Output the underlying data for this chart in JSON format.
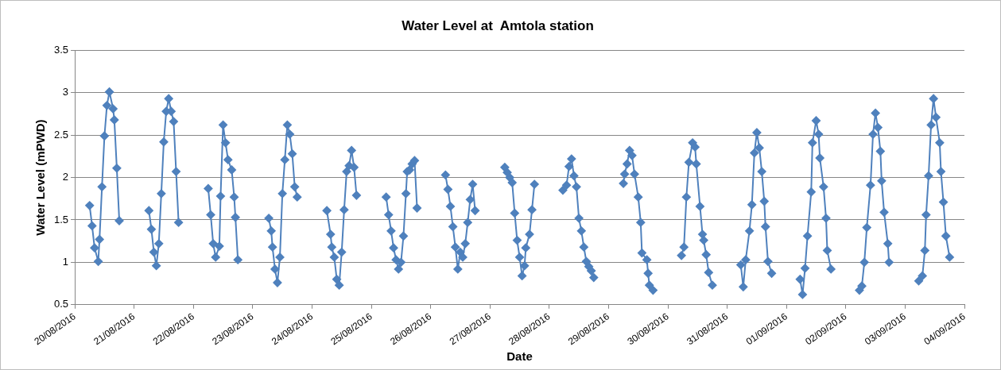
{
  "chart_data": {
    "type": "line",
    "title": "Water Level at  Amtola station",
    "xlabel": "Date",
    "ylabel": "Water Level (mPWD)",
    "x": [
      "2016-08-20T06:00",
      "2016-08-20T07:00",
      "2016-08-20T08:00",
      "2016-08-20T09:30",
      "2016-08-20T10:00",
      "2016-08-20T11:00",
      "2016-08-20T12:00",
      "2016-08-20T13:00",
      "2016-08-20T14:00",
      "2016-08-20T15:30",
      "2016-08-20T16:00",
      "2016-08-20T17:00",
      "2016-08-20T18:00",
      "2016-08-20T23:00",
      "2016-08-21T06:00",
      "2016-08-21T07:00",
      "2016-08-21T08:00",
      "2016-08-21T09:00",
      "2016-08-21T10:00",
      "2016-08-21T11:00",
      "2016-08-21T12:00",
      "2016-08-21T13:00",
      "2016-08-21T14:00",
      "2016-08-21T15:00",
      "2016-08-21T16:00",
      "2016-08-21T17:00",
      "2016-08-21T18:00",
      "2016-08-21T23:00",
      "2016-08-22T06:00",
      "2016-08-22T07:00",
      "2016-08-22T08:00",
      "2016-08-22T09:00",
      "2016-08-22T10:30",
      "2016-08-22T11:00",
      "2016-08-22T12:00",
      "2016-08-22T13:00",
      "2016-08-22T14:00",
      "2016-08-22T15:30",
      "2016-08-22T16:30",
      "2016-08-22T17:00",
      "2016-08-22T18:00",
      "2016-08-22T23:00",
      "2016-08-23T06:30",
      "2016-08-23T07:30",
      "2016-08-23T08:00",
      "2016-08-23T09:00",
      "2016-08-23T10:00",
      "2016-08-23T11:00",
      "2016-08-23T12:00",
      "2016-08-23T13:00",
      "2016-08-23T14:00",
      "2016-08-23T15:00",
      "2016-08-23T16:00",
      "2016-08-23T17:00",
      "2016-08-23T18:00",
      "2016-08-23T23:00",
      "2016-08-24T06:00",
      "2016-08-24T07:30",
      "2016-08-24T08:00",
      "2016-08-24T09:00",
      "2016-08-24T10:00",
      "2016-08-24T11:00",
      "2016-08-24T12:00",
      "2016-08-24T13:00",
      "2016-08-24T14:00",
      "2016-08-24T15:00",
      "2016-08-24T16:00",
      "2016-08-24T17:00",
      "2016-08-24T18:00",
      "2016-08-24T23:00",
      "2016-08-25T06:00",
      "2016-08-25T07:00",
      "2016-08-25T08:00",
      "2016-08-25T09:00",
      "2016-08-25T10:00",
      "2016-08-25T11:00",
      "2016-08-25T12:00",
      "2016-08-25T13:00",
      "2016-08-25T14:00",
      "2016-08-25T14:30",
      "2016-08-25T15:30",
      "2016-08-25T16:30",
      "2016-08-25T17:30",
      "2016-08-25T18:30",
      "2016-08-25T23:00",
      "2016-08-26T06:00",
      "2016-08-26T07:00",
      "2016-08-26T08:00",
      "2016-08-26T09:00",
      "2016-08-26T10:00",
      "2016-08-26T11:00",
      "2016-08-26T12:00",
      "2016-08-26T13:00",
      "2016-08-26T14:00",
      "2016-08-26T15:00",
      "2016-08-26T16:00",
      "2016-08-26T17:00",
      "2016-08-26T18:00",
      "2016-08-26T23:00",
      "2016-08-27T06:00",
      "2016-08-27T07:00",
      "2016-08-27T08:00",
      "2016-08-27T09:00",
      "2016-08-27T10:00",
      "2016-08-27T11:00",
      "2016-08-27T12:00",
      "2016-08-27T13:00",
      "2016-08-27T14:00",
      "2016-08-27T14:30",
      "2016-08-27T16:00",
      "2016-08-27T17:00",
      "2016-08-27T18:00",
      "2016-08-27T23:00",
      "2016-08-28T05:30",
      "2016-08-28T07:00",
      "2016-08-28T08:00",
      "2016-08-28T09:00",
      "2016-08-28T10:00",
      "2016-08-28T11:00",
      "2016-08-28T12:00",
      "2016-08-28T13:00",
      "2016-08-28T14:00",
      "2016-08-28T15:00",
      "2016-08-28T16:00",
      "2016-08-28T17:00",
      "2016-08-28T18:00",
      "2016-08-28T23:00",
      "2016-08-29T06:00",
      "2016-08-29T06:30",
      "2016-08-29T07:30",
      "2016-08-29T08:30",
      "2016-08-29T09:30",
      "2016-08-29T10:30",
      "2016-08-29T12:00",
      "2016-08-29T13:00",
      "2016-08-29T13:30",
      "2016-08-29T15:30",
      "2016-08-29T16:00",
      "2016-08-29T16:30",
      "2016-08-29T18:00",
      "2016-08-29T23:00",
      "2016-08-30T05:30",
      "2016-08-30T06:30",
      "2016-08-30T07:30",
      "2016-08-30T08:30",
      "2016-08-30T10:00",
      "2016-08-30T11:00",
      "2016-08-30T11:30",
      "2016-08-30T13:00",
      "2016-08-30T14:00",
      "2016-08-30T14:30",
      "2016-08-30T15:30",
      "2016-08-30T16:30",
      "2016-08-30T18:00",
      "2016-08-30T23:00",
      "2016-08-31T05:30",
      "2016-08-31T06:30",
      "2016-08-31T07:30",
      "2016-08-31T09:00",
      "2016-08-31T10:00",
      "2016-08-31T11:00",
      "2016-08-31T12:00",
      "2016-08-31T13:00",
      "2016-08-31T14:00",
      "2016-08-31T15:00",
      "2016-08-31T15:30",
      "2016-08-31T16:30",
      "2016-08-31T18:00",
      "2016-08-31T23:00",
      "2016-09-01T05:30",
      "2016-09-01T06:30",
      "2016-09-01T07:30",
      "2016-09-01T08:30",
      "2016-09-01T10:00",
      "2016-09-01T10:30",
      "2016-09-01T12:00",
      "2016-09-01T13:00",
      "2016-09-01T13:30",
      "2016-09-01T15:00",
      "2016-09-01T16:00",
      "2016-09-01T16:30",
      "2016-09-01T18:00",
      "2016-09-01T23:00",
      "2016-09-02T05:30",
      "2016-09-02T06:30",
      "2016-09-02T07:30",
      "2016-09-02T08:30",
      "2016-09-02T10:00",
      "2016-09-02T11:00",
      "2016-09-02T12:00",
      "2016-09-02T13:00",
      "2016-09-02T14:00",
      "2016-09-02T14:30",
      "2016-09-02T15:30",
      "2016-09-02T17:00",
      "2016-09-02T17:30",
      "2016-09-02T23:00",
      "2016-09-03T05:30",
      "2016-09-03T07:00",
      "2016-09-03T08:00",
      "2016-09-03T08:30",
      "2016-09-03T09:30",
      "2016-09-03T10:30",
      "2016-09-03T11:30",
      "2016-09-03T12:30",
      "2016-09-03T14:00",
      "2016-09-03T14:30",
      "2016-09-03T15:30",
      "2016-09-03T16:30",
      "2016-09-03T18:00"
    ],
    "series": [
      {
        "color": "#4f81bd",
        "values": [
          1.67,
          1.43,
          1.17,
          1.01,
          1.27,
          1.89,
          2.49,
          2.85,
          3.01,
          2.81,
          2.68,
          2.11,
          1.49,
          null,
          1.61,
          1.39,
          1.12,
          0.96,
          1.22,
          1.81,
          2.42,
          2.78,
          2.93,
          2.78,
          2.66,
          2.07,
          1.47,
          null,
          1.87,
          1.56,
          1.22,
          1.06,
          1.19,
          1.78,
          2.62,
          2.41,
          2.21,
          2.09,
          1.77,
          1.53,
          1.03,
          null,
          1.52,
          1.37,
          1.18,
          0.92,
          0.76,
          1.06,
          1.81,
          2.21,
          2.62,
          2.51,
          2.28,
          1.89,
          1.77,
          null,
          1.61,
          1.33,
          1.18,
          1.06,
          0.8,
          0.73,
          1.12,
          1.62,
          2.07,
          2.14,
          2.32,
          2.12,
          1.79,
          null,
          1.77,
          1.56,
          1.37,
          1.17,
          1.03,
          0.92,
          1.0,
          1.31,
          1.81,
          2.07,
          2.09,
          2.16,
          2.2,
          1.64,
          null,
          2.03,
          1.86,
          1.66,
          1.42,
          1.18,
          0.92,
          1.12,
          1.06,
          1.22,
          1.47,
          1.74,
          1.92,
          1.61,
          null,
          2.12,
          2.06,
          2.0,
          1.94,
          1.58,
          1.26,
          1.06,
          0.84,
          0.96,
          1.17,
          1.33,
          1.62,
          1.92,
          null,
          1.85,
          1.91,
          2.13,
          2.22,
          2.02,
          1.89,
          1.52,
          1.37,
          1.18,
          1.01,
          0.95,
          0.9,
          0.82,
          null,
          1.93,
          2.04,
          2.16,
          2.32,
          2.26,
          2.04,
          1.77,
          1.47,
          1.11,
          1.03,
          0.87,
          0.73,
          0.67,
          null,
          1.08,
          1.18,
          1.77,
          2.18,
          2.41,
          2.36,
          2.16,
          1.66,
          1.33,
          1.26,
          1.09,
          0.88,
          0.73,
          null,
          0.97,
          0.71,
          1.03,
          1.37,
          1.68,
          2.29,
          2.53,
          2.35,
          2.07,
          1.72,
          1.42,
          1.01,
          0.87,
          null,
          0.8,
          0.62,
          0.93,
          1.31,
          1.83,
          2.41,
          2.67,
          2.51,
          2.23,
          1.89,
          1.52,
          1.14,
          0.92,
          null,
          0.67,
          0.72,
          1.0,
          1.41,
          1.91,
          2.51,
          2.76,
          2.59,
          2.31,
          1.96,
          1.59,
          1.22,
          1.0,
          null,
          0.78,
          0.84,
          1.14,
          1.56,
          2.02,
          2.62,
          2.93,
          2.71,
          2.41,
          2.07,
          1.71,
          1.31,
          1.06
        ]
      }
    ],
    "xlim": [
      "2016-08-20",
      "2016-09-04"
    ],
    "xticks": [
      {
        "value": "2016-08-20",
        "label": "20/08/2016"
      },
      {
        "value": "2016-08-21",
        "label": "21/08/2016"
      },
      {
        "value": "2016-08-22",
        "label": "22/08/2016"
      },
      {
        "value": "2016-08-23",
        "label": "23/08/2016"
      },
      {
        "value": "2016-08-24",
        "label": "24/08/2016"
      },
      {
        "value": "2016-08-25",
        "label": "25/08/2016"
      },
      {
        "value": "2016-08-26",
        "label": "26/08/2016"
      },
      {
        "value": "2016-08-27",
        "label": "27/08/2016"
      },
      {
        "value": "2016-08-28",
        "label": "28/08/2016"
      },
      {
        "value": "2016-08-29",
        "label": "29/08/2016"
      },
      {
        "value": "2016-08-30",
        "label": "30/08/2016"
      },
      {
        "value": "2016-08-31",
        "label": "31/08/2016"
      },
      {
        "value": "2016-09-01",
        "label": "01/09/2016"
      },
      {
        "value": "2016-09-02",
        "label": "02/09/2016"
      },
      {
        "value": "2016-09-03",
        "label": "03/09/2016"
      },
      {
        "value": "2016-09-04",
        "label": "04/09/2016"
      }
    ],
    "ylim": [
      0.5,
      3.5
    ],
    "yticks": [
      0.5,
      1,
      1.5,
      2,
      2.5,
      3,
      3.5
    ],
    "grid": "y",
    "marker": "diamond",
    "line_style": "solid"
  }
}
